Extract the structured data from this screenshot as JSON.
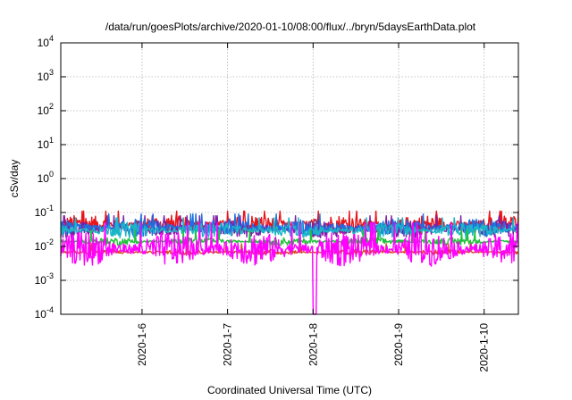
{
  "chart_data": {
    "type": "line",
    "title": "/data/run/goesPlots/archive/2020-01-10/08:00/flux/../bryn/5daysEarthData.plot",
    "xlabel": "Coordinated Universal Time (UTC)",
    "ylabel": "cSv/day",
    "yscale": "log",
    "ylim": [
      0.0001,
      10000
    ],
    "xlim": [
      0,
      5.35
    ],
    "grid": true,
    "y_ticks": [
      {
        "base": "10",
        "exp": "-4",
        "value": 0.0001
      },
      {
        "base": "10",
        "exp": "-3",
        "value": 0.001
      },
      {
        "base": "10",
        "exp": "-2",
        "value": 0.01
      },
      {
        "base": "10",
        "exp": "-1",
        "value": 0.1
      },
      {
        "base": "10",
        "exp": "0",
        "value": 1
      },
      {
        "base": "10",
        "exp": "1",
        "value": 10
      },
      {
        "base": "10",
        "exp": "2",
        "value": 100
      },
      {
        "base": "10",
        "exp": "3",
        "value": 1000
      },
      {
        "base": "10",
        "exp": "4",
        "value": 10000
      }
    ],
    "x_ticks": [
      {
        "label": "2020-1-6",
        "value": 0.95
      },
      {
        "label": "2020-1-7",
        "value": 1.95
      },
      {
        "label": "2020-1-8",
        "value": 2.95
      },
      {
        "label": "2020-1-9",
        "value": 3.95
      },
      {
        "label": "2020-1-10",
        "value": 4.95
      }
    ],
    "series": [
      {
        "color": "#e8151a",
        "level": 0.045,
        "spread": 0.3,
        "spike_value": 0.11
      },
      {
        "color": "#7d1fa6",
        "level": 0.032,
        "spread": 0.28,
        "spike_value": 0.08
      },
      {
        "color": "#1f6fe0",
        "level": 0.036,
        "spread": 0.28,
        "spike_value": 0.09
      },
      {
        "color": "#1ab6c8",
        "level": 0.03,
        "spread": 0.25,
        "spike_value": 0.07
      },
      {
        "color": "#1fc23a",
        "level": 0.014,
        "spread": 0.12,
        "spike_value": 0.03
      },
      {
        "color": "#d94a1c",
        "level": 0.0068,
        "spread": 0.08,
        "spike_value": 0.012
      },
      {
        "color": "#ff00ff",
        "level": 0.0085,
        "spread": 0.55,
        "spike_value": 0.05,
        "dropout_at": 2.97,
        "dropout_value": 0.0001
      }
    ]
  }
}
